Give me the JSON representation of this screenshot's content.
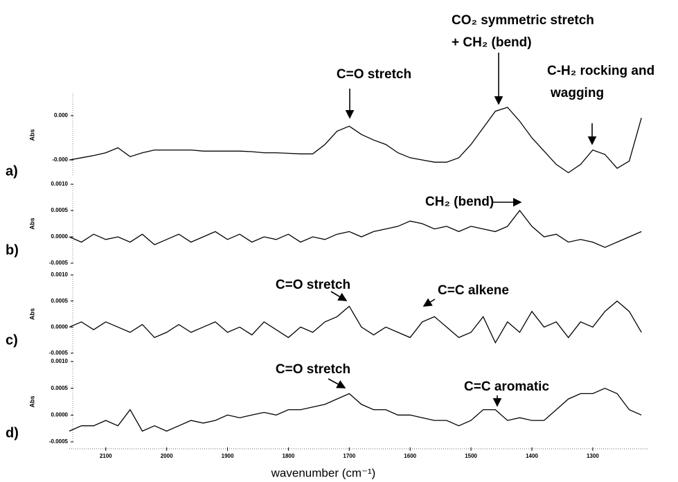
{
  "chart_data": [
    {
      "type": "line",
      "panel_label": "a)",
      "y_label": "Abs",
      "annotations": [
        "C=O stretch",
        "CO₂ symmetric stretch",
        "+ CH₂ (bend)",
        "C-H₂ rocking and",
        "wagging"
      ],
      "xlim": [
        2160,
        1210
      ],
      "x": [
        2160,
        2140,
        2120,
        2100,
        2080,
        2060,
        2040,
        2020,
        2000,
        1980,
        1960,
        1940,
        1920,
        1900,
        1880,
        1860,
        1840,
        1820,
        1800,
        1780,
        1760,
        1740,
        1720,
        1700,
        1680,
        1660,
        1640,
        1620,
        1600,
        1580,
        1560,
        1540,
        1520,
        1500,
        1480,
        1460,
        1440,
        1420,
        1400,
        1380,
        1360,
        1340,
        1320,
        1300,
        1280,
        1260,
        1240,
        1220
      ],
      "series": [
        {
          "color": "#000000",
          "values": [
            -0.0004,
            -0.00036,
            -0.00032,
            -0.00027,
            -0.00018,
            -0.00034,
            -0.00027,
            -0.00022,
            -0.00022,
            -0.00022,
            -0.00022,
            -0.00024,
            -0.00024,
            -0.00024,
            -0.00024,
            -0.00025,
            -0.00027,
            -0.00027,
            -0.00028,
            -0.00029,
            -0.00029,
            -0.00012,
            0.00012,
            0.00021,
            6e-05,
            -4e-05,
            -0.00012,
            -0.00027,
            -0.00036,
            -0.0004,
            -0.00044,
            -0.00044,
            -0.00036,
            -0.00012,
            0.00018,
            0.00048,
            0.00055,
            0.0003,
            0.0,
            -0.00024,
            -0.00048,
            -0.00063,
            -0.00048,
            -0.00022,
            -0.0003,
            -0.00055,
            -0.00042,
            0.00036
          ]
        }
      ],
      "ylim": [
        -0.0007,
        0.0008
      ],
      "yticks": [
        {
          "value": 0.0004,
          "label": "0.000"
        },
        {
          "value": -0.0004,
          "label": "-0.000"
        }
      ]
    },
    {
      "type": "line",
      "panel_label": "b)",
      "y_label": "Abs",
      "annotations": [
        "CH₂ (bend)"
      ],
      "xlim": [
        2160,
        1210
      ],
      "x": [
        2160,
        2140,
        2120,
        2100,
        2080,
        2060,
        2040,
        2020,
        2000,
        1980,
        1960,
        1940,
        1920,
        1900,
        1880,
        1860,
        1840,
        1820,
        1800,
        1780,
        1760,
        1740,
        1720,
        1700,
        1680,
        1660,
        1640,
        1620,
        1600,
        1580,
        1560,
        1540,
        1520,
        1500,
        1480,
        1460,
        1440,
        1420,
        1400,
        1380,
        1360,
        1340,
        1320,
        1300,
        1280,
        1260,
        1240,
        1220
      ],
      "series": [
        {
          "color": "#000000",
          "values": [
            0.0,
            -0.0001,
            5e-05,
            -5e-05,
            0.0,
            -0.0001,
            5e-05,
            -0.00015,
            -5e-05,
            5e-05,
            -0.0001,
            0.0,
            0.0001,
            -5e-05,
            5e-05,
            -0.0001,
            0.0,
            -5e-05,
            5e-05,
            -0.0001,
            0.0,
            -5e-05,
            5e-05,
            0.0001,
            0.0,
            0.0001,
            0.00015,
            0.0002,
            0.0003,
            0.00025,
            0.00015,
            0.0002,
            0.0001,
            0.0002,
            0.00015,
            0.0001,
            0.0002,
            0.0005,
            0.0002,
            0.0,
            5e-05,
            -0.0001,
            -5e-05,
            -0.0001,
            -0.0002,
            -0.0001,
            0.0,
            0.0001
          ]
        }
      ],
      "ylim": [
        -0.0005,
        0.001
      ],
      "yticks": [
        {
          "value": 0.001,
          "label": "0.0010"
        },
        {
          "value": 0.0005,
          "label": "0.0005"
        },
        {
          "value": 0,
          "label": "0.0000"
        },
        {
          "value": -0.0005,
          "label": "-0.0005"
        }
      ]
    },
    {
      "type": "line",
      "panel_label": "c)",
      "y_label": "Abs",
      "annotations": [
        "C=O stretch",
        "C=C alkene"
      ],
      "xlim": [
        2160,
        1210
      ],
      "x": [
        2160,
        2140,
        2120,
        2100,
        2080,
        2060,
        2040,
        2020,
        2000,
        1980,
        1960,
        1940,
        1920,
        1900,
        1880,
        1860,
        1840,
        1820,
        1800,
        1780,
        1760,
        1740,
        1720,
        1700,
        1680,
        1660,
        1640,
        1620,
        1600,
        1580,
        1560,
        1540,
        1520,
        1500,
        1480,
        1460,
        1440,
        1420,
        1400,
        1380,
        1360,
        1340,
        1320,
        1300,
        1280,
        1260,
        1240,
        1220
      ],
      "series": [
        {
          "color": "#000000",
          "values": [
            0.0,
            0.0001,
            -5e-05,
            0.0001,
            0.0,
            -0.0001,
            5e-05,
            -0.0002,
            -0.0001,
            5e-05,
            -0.0001,
            0.0,
            0.0001,
            -0.0001,
            0.0,
            -0.00015,
            0.0001,
            -5e-05,
            -0.0002,
            0.0,
            -0.0001,
            0.0001,
            0.0002,
            0.0004,
            0.0,
            -0.00015,
            0.0,
            -0.0001,
            -0.0002,
            0.0001,
            0.0002,
            0.0,
            -0.0002,
            -0.0001,
            0.0002,
            -0.0003,
            0.0001,
            -0.0001,
            0.0003,
            0.0,
            0.0001,
            -0.0002,
            0.0001,
            0.0,
            0.0003,
            0.0005,
            0.0003,
            -0.0001
          ]
        }
      ],
      "ylim": [
        -0.0005,
        0.001
      ],
      "yticks": [
        {
          "value": 0.001,
          "label": "0.0010"
        },
        {
          "value": 0.0005,
          "label": "0.0005"
        },
        {
          "value": 0,
          "label": "0.0000"
        },
        {
          "value": -0.0005,
          "label": "-0.0005"
        }
      ]
    },
    {
      "type": "line",
      "panel_label": "d)",
      "y_label": "Abs",
      "annotations": [
        "C=O stretch",
        "C=C aromatic"
      ],
      "xlim": [
        2160,
        1210
      ],
      "x": [
        2160,
        2140,
        2120,
        2100,
        2080,
        2060,
        2040,
        2020,
        2000,
        1980,
        1960,
        1940,
        1920,
        1900,
        1880,
        1860,
        1840,
        1820,
        1800,
        1780,
        1760,
        1740,
        1720,
        1700,
        1680,
        1660,
        1640,
        1620,
        1600,
        1580,
        1560,
        1540,
        1520,
        1500,
        1480,
        1460,
        1440,
        1420,
        1400,
        1380,
        1360,
        1340,
        1320,
        1300,
        1280,
        1260,
        1240,
        1220
      ],
      "series": [
        {
          "color": "#000000",
          "values": [
            -0.0003,
            -0.0002,
            -0.0002,
            -0.0001,
            -0.0002,
            0.0001,
            -0.0003,
            -0.0002,
            -0.0003,
            -0.0002,
            -0.0001,
            -0.00015,
            -0.0001,
            0.0,
            -5e-05,
            0.0,
            5e-05,
            0.0,
            0.0001,
            0.0001,
            0.00015,
            0.0002,
            0.0003,
            0.0004,
            0.0002,
            0.0001,
            0.0001,
            0.0,
            0.0,
            -5e-05,
            -0.0001,
            -0.0001,
            -0.0002,
            -0.0001,
            0.0001,
            0.0001,
            -0.0001,
            -5e-05,
            -0.0001,
            -0.0001,
            0.0001,
            0.0003,
            0.0004,
            0.0004,
            0.0005,
            0.0004,
            0.0001,
            0.0
          ]
        }
      ],
      "ylim": [
        -0.0005,
        0.001
      ],
      "yticks": [
        {
          "value": 0.001,
          "label": "0.0010"
        },
        {
          "value": 0.0005,
          "label": "0.0005"
        },
        {
          "value": 0,
          "label": "0.0000"
        },
        {
          "value": -0.0005,
          "label": "-0.0005"
        }
      ],
      "xticks": [
        2100,
        2000,
        1900,
        1800,
        1700,
        1600,
        1500,
        1400,
        1300
      ],
      "x_label": "wavenumber (cm⁻¹)"
    }
  ]
}
